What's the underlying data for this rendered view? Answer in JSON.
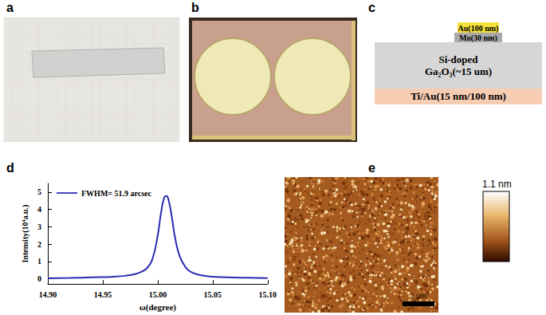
{
  "panel_labels": [
    "a",
    "b",
    "c",
    "d",
    "e"
  ],
  "layer_stack": [
    {
      "label": "Au(100 nm)",
      "color": "#f3e03a"
    },
    {
      "label": "Mo(30 nm)",
      "color": "#a9a9a9"
    },
    {
      "label": [
        "Si-doped",
        "Ga₂O₃(~15 um)"
      ],
      "color": "#d6d6d6"
    },
    {
      "label": "Ti/Au(15 nm/100 nm)",
      "color": "#f6cdb3"
    }
  ],
  "chart_data": {
    "type": "line",
    "xlabel": "ω(degree)",
    "ylabel": "Intensity(10⁴a.u.)",
    "x": [
      14.9,
      14.92,
      14.94,
      14.96,
      14.97,
      14.98,
      14.985,
      14.99,
      14.995,
      15.0,
      15.003,
      15.006,
      15.008,
      15.01,
      15.013,
      15.016,
      15.02,
      15.025,
      15.03,
      15.04,
      15.05,
      15.07,
      15.09,
      15.1
    ],
    "series": [
      {
        "name": "FWHM= 51.9 arcsec",
        "color": "#2b2bb5",
        "values": [
          0.03,
          0.05,
          0.08,
          0.12,
          0.17,
          0.28,
          0.4,
          0.6,
          1.1,
          2.5,
          3.8,
          4.7,
          4.78,
          4.5,
          3.5,
          2.3,
          1.3,
          0.7,
          0.4,
          0.2,
          0.12,
          0.07,
          0.05,
          0.04
        ]
      }
    ],
    "xlim": [
      14.9,
      15.1
    ],
    "xticks": [
      {
        "value": 14.9,
        "label": "14.90"
      },
      {
        "value": 14.95,
        "label": "14.95"
      },
      {
        "value": 15.0,
        "label": "15.00"
      },
      {
        "value": 15.05,
        "label": "15.05"
      },
      {
        "value": 15.1,
        "label": "15.10"
      }
    ],
    "ylim": [
      -0.3,
      5.5
    ],
    "yticks": [
      0,
      1,
      2,
      3,
      4,
      5
    ],
    "legend": "upper left",
    "grid": false
  },
  "afm": {
    "colorbar_label": "1.1 nm",
    "scale_bar": "1 μm"
  }
}
